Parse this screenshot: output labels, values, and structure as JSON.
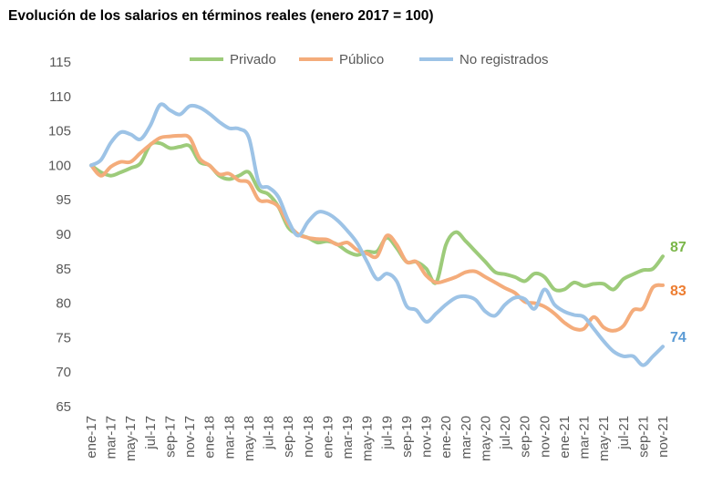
{
  "chart_data": {
    "type": "line",
    "title": "Evolución de los salarios en términos reales (enero 2017 = 100)",
    "xlabel": "",
    "ylabel": "",
    "ylim": [
      65,
      115
    ],
    "yticks": [
      65,
      70,
      75,
      80,
      85,
      90,
      95,
      100,
      105,
      110,
      115
    ],
    "grid": false,
    "legend_position": "top",
    "x_tick_labels": [
      "ene-17",
      "mar-17",
      "may-17",
      "jul-17",
      "sep-17",
      "nov-17",
      "ene-18",
      "mar-18",
      "may-18",
      "jul-18",
      "sep-18",
      "nov-18",
      "ene-19",
      "mar-19",
      "may-19",
      "jul-19",
      "sep-19",
      "nov-19",
      "ene-20",
      "mar-20",
      "may-20",
      "jul-20",
      "sep-20",
      "nov-20",
      "ene-21",
      "mar-21",
      "may-21",
      "jul-21",
      "sep-21",
      "nov-21"
    ],
    "months_count": 59,
    "series": [
      {
        "name": "Privado",
        "color": "#9dcb7a",
        "label_color": "#7ab648",
        "end_label": "87",
        "values": [
          100,
          99,
          98.5,
          99,
          99.6,
          100.3,
          103,
          103.2,
          102.5,
          102.7,
          102.8,
          100.5,
          100,
          98.5,
          98,
          98.5,
          99,
          96.5,
          95.8,
          94,
          91,
          90,
          89.5,
          88.8,
          89,
          88.5,
          87.5,
          87,
          87.5,
          87.5,
          89.5,
          88,
          86,
          86,
          85,
          83,
          88.5,
          90.3,
          89,
          87.5,
          86,
          84.5,
          84.2,
          83.8,
          83.2,
          84.3,
          83.8,
          82,
          82,
          83,
          82.5,
          82.8,
          82.8,
          82,
          83.5,
          84.2,
          84.8,
          85,
          86.8
        ]
      },
      {
        "name": "Público",
        "color": "#f4ac7b",
        "label_color": "#ed7d31",
        "end_label": "83",
        "values": [
          100,
          98.5,
          99.8,
          100.5,
          100.5,
          101.8,
          103,
          104,
          104.2,
          104.3,
          104,
          101,
          100,
          98.7,
          98.8,
          97.8,
          97.5,
          95,
          94.8,
          94,
          91.5,
          90,
          89.5,
          89.3,
          89.2,
          88.5,
          88.8,
          87.7,
          87.2,
          86.8,
          89.8,
          88.5,
          86,
          86,
          84,
          83,
          83.3,
          83.8,
          84.5,
          84.6,
          83.8,
          83,
          82.2,
          81.5,
          80.2,
          80,
          79.5,
          78.5,
          77.2,
          76.3,
          76.3,
          78,
          76.5,
          76,
          76.7,
          79,
          79.3,
          82.3,
          82.6
        ]
      },
      {
        "name": "No registrados",
        "color": "#9dc3e6",
        "label_color": "#5b9bd5",
        "end_label": "74",
        "values": [
          100,
          100.8,
          103.3,
          104.8,
          104.5,
          103.8,
          105.8,
          108.8,
          108,
          107.4,
          108.6,
          108.4,
          107.5,
          106.3,
          105.4,
          105.3,
          104,
          97.5,
          96.8,
          95.4,
          92,
          89.8,
          91.8,
          93.2,
          93,
          92,
          90.5,
          88.7,
          86,
          83.5,
          84.3,
          83.2,
          79.6,
          79,
          77.3,
          78.5,
          79.8,
          80.8,
          81,
          80.5,
          78.8,
          78.2,
          79.8,
          80.8,
          80.6,
          79.2,
          82,
          79.8,
          78.8,
          78.3,
          78,
          76.3,
          74.5,
          73,
          72.3,
          72.3,
          71,
          72.3,
          73.7
        ]
      }
    ]
  }
}
